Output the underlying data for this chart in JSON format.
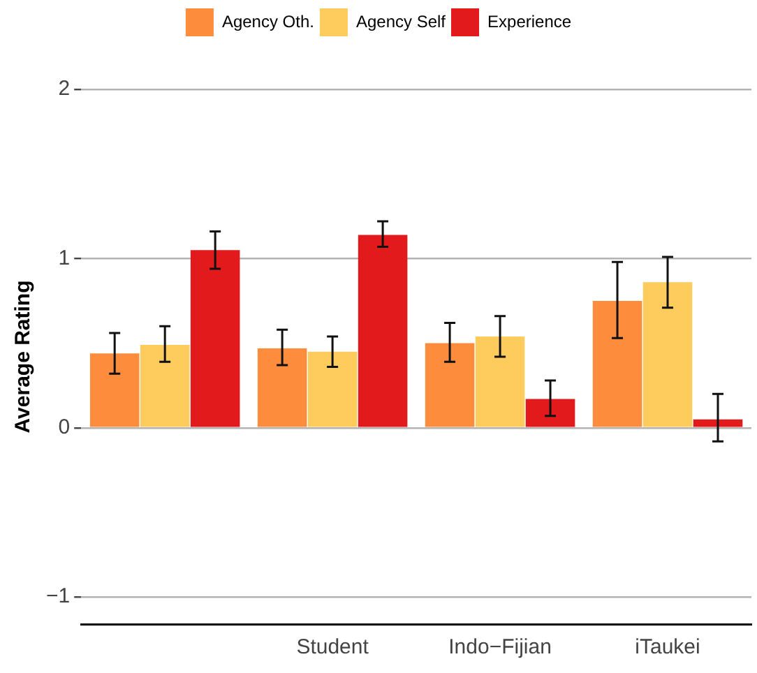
{
  "chart_data": {
    "type": "bar",
    "ylabel": "Average Rating",
    "categories": [
      null,
      "Student",
      "Indo−Fijian",
      "iTaukei"
    ],
    "series": [
      {
        "name": "Agency Oth.",
        "color": "#fd8d3c",
        "values": [
          0.44,
          0.47,
          0.5,
          0.75
        ],
        "errors": [
          [
            0.32,
            0.56
          ],
          [
            0.37,
            0.58
          ],
          [
            0.39,
            0.62
          ],
          [
            0.53,
            0.98
          ]
        ]
      },
      {
        "name": "Agency Self",
        "color": "#fecc5c",
        "values": [
          0.49,
          0.45,
          0.54,
          0.86
        ],
        "errors": [
          [
            0.39,
            0.6
          ],
          [
            0.36,
            0.54
          ],
          [
            0.42,
            0.66
          ],
          [
            0.71,
            1.01
          ]
        ]
      },
      {
        "name": "Experience",
        "color": "#e31a1c",
        "values": [
          1.05,
          1.14,
          0.17,
          0.05
        ],
        "errors": [
          [
            0.94,
            1.16
          ],
          [
            1.07,
            1.22
          ],
          [
            0.07,
            0.28
          ],
          [
            -0.08,
            0.2
          ]
        ]
      }
    ],
    "ylim": [
      -1.16,
      2
    ],
    "yticks": [
      -1,
      0,
      1,
      2
    ],
    "grid": "y",
    "legend": "top"
  }
}
